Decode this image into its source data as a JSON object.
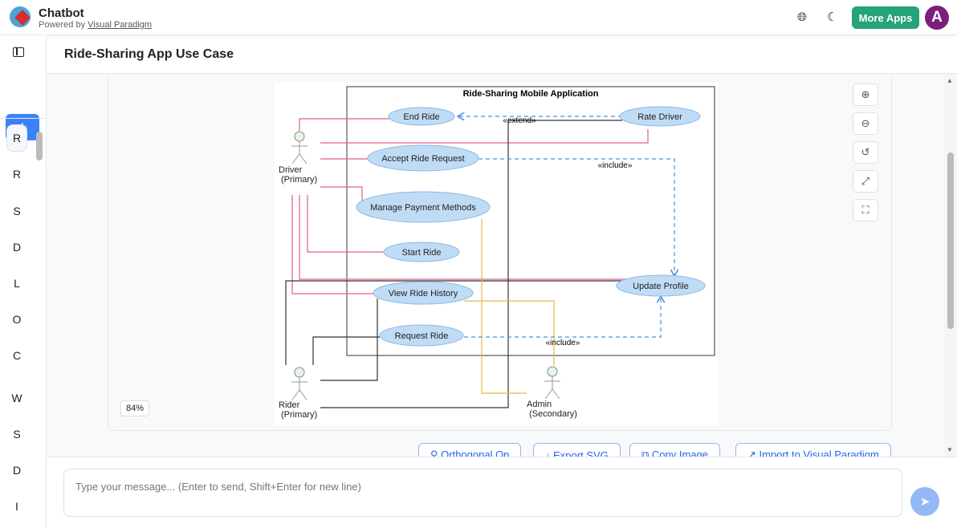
{
  "header": {
    "app_title": "Chatbot",
    "powered_by": "Powered by",
    "powered_link": "Visual Paradigm",
    "more_apps": "More Apps",
    "avatar_letter": "A",
    "icons": [
      "globe-icon",
      "moon-icon"
    ]
  },
  "sidebar": {
    "new_label": "+",
    "items": [
      "R",
      "R",
      "S",
      "D",
      "L",
      "O",
      "C",
      "W",
      "S",
      "D",
      "I"
    ]
  },
  "page": {
    "title": "Ride-Sharing App Use Case"
  },
  "diagram": {
    "system": "Ride-Sharing Mobile Application",
    "actors": [
      {
        "name": "Driver",
        "role": "(Primary)"
      },
      {
        "name": "Rider",
        "role": "(Primary)"
      },
      {
        "name": "Admin",
        "role": "(Secondary)"
      }
    ],
    "use_cases": [
      "End Ride",
      "Rate Driver",
      "Accept Ride Request",
      "Manage Payment Methods",
      "Start Ride",
      "Update Profile",
      "View Ride History",
      "Request Ride"
    ],
    "relations": {
      "extend": "«extend»",
      "include1": "«include»",
      "include2": "«include»"
    },
    "colors": {
      "driver_line": "#e06080",
      "rider_line": "#333333",
      "admin_line": "#e8b84a",
      "dependency": "#4a8fe0",
      "usecase_fill": "#c0dcf5"
    }
  },
  "zoom": {
    "level": "84%"
  },
  "actions": [
    "Orthogonal On",
    "Export SVG",
    "Copy Image",
    "Import to Visual Paradigm"
  ],
  "composer": {
    "placeholder": "Type your message... (Enter to send, Shift+Enter for new line)"
  }
}
